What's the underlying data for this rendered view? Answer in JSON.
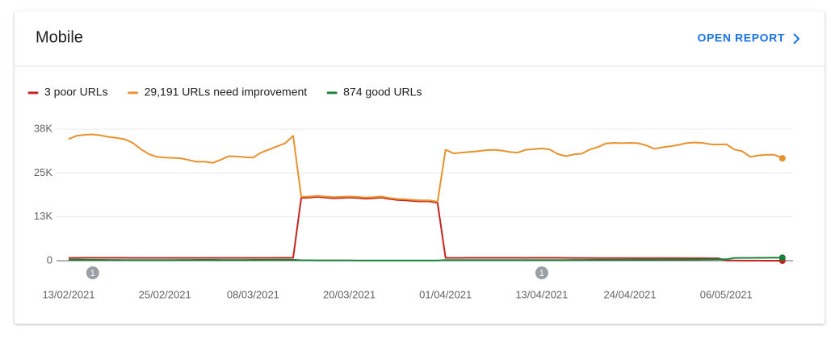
{
  "card": {
    "action": "OPEN REPORT"
  },
  "chart_data": {
    "type": "line",
    "title": "Mobile",
    "x": [
      "13/02/2021",
      "14/02/2021",
      "15/02/2021",
      "16/02/2021",
      "17/02/2021",
      "18/02/2021",
      "19/02/2021",
      "20/02/2021",
      "21/02/2021",
      "22/02/2021",
      "23/02/2021",
      "24/02/2021",
      "25/02/2021",
      "26/02/2021",
      "27/02/2021",
      "28/02/2021",
      "01/03/2021",
      "02/03/2021",
      "03/03/2021",
      "04/03/2021",
      "05/03/2021",
      "06/03/2021",
      "07/03/2021",
      "08/03/2021",
      "09/03/2021",
      "10/03/2021",
      "11/03/2021",
      "12/03/2021",
      "13/03/2021",
      "14/03/2021",
      "15/03/2021",
      "16/03/2021",
      "17/03/2021",
      "18/03/2021",
      "19/03/2021",
      "20/03/2021",
      "21/03/2021",
      "22/03/2021",
      "23/03/2021",
      "24/03/2021",
      "25/03/2021",
      "26/03/2021",
      "27/03/2021",
      "28/03/2021",
      "29/03/2021",
      "30/03/2021",
      "31/03/2021",
      "01/04/2021",
      "02/04/2021",
      "03/04/2021",
      "04/04/2021",
      "05/04/2021",
      "06/04/2021",
      "07/04/2021",
      "08/04/2021",
      "09/04/2021",
      "10/04/2021",
      "11/04/2021",
      "12/04/2021",
      "13/04/2021",
      "14/04/2021",
      "15/04/2021",
      "16/04/2021",
      "17/04/2021",
      "18/04/2021",
      "19/04/2021",
      "20/04/2021",
      "21/04/2021",
      "22/04/2021",
      "23/04/2021",
      "24/04/2021",
      "25/04/2021",
      "26/04/2021",
      "27/04/2021",
      "28/04/2021",
      "29/04/2021",
      "30/04/2021",
      "01/05/2021",
      "02/05/2021",
      "03/05/2021",
      "04/05/2021",
      "05/05/2021",
      "06/05/2021",
      "07/05/2021",
      "08/05/2021",
      "09/05/2021",
      "10/05/2021",
      "11/05/2021",
      "12/05/2021",
      "13/05/2021"
    ],
    "xticks": [
      "13/02/2021",
      "25/02/2021",
      "08/03/2021",
      "20/03/2021",
      "01/04/2021",
      "13/04/2021",
      "24/04/2021",
      "06/05/2021"
    ],
    "ylim": [
      0,
      37500
    ],
    "yticks": [
      0,
      {
        "value": 12500,
        "label": "13K"
      },
      {
        "value": 25000,
        "label": "25K"
      },
      {
        "value": 37500,
        "label": "38K"
      }
    ],
    "grid": true,
    "legend": "top-left",
    "annotations": [
      {
        "x": "16/02/2021",
        "label": "1"
      },
      {
        "x": "13/04/2021",
        "label": "1"
      }
    ],
    "series": [
      {
        "name": "3 poor URLs",
        "color": "#c5221f",
        "values": [
          800,
          810,
          820,
          820,
          830,
          830,
          820,
          820,
          810,
          810,
          800,
          800,
          810,
          810,
          810,
          800,
          800,
          800,
          800,
          810,
          810,
          800,
          800,
          800,
          810,
          810,
          820,
          820,
          830,
          17900,
          18000,
          18200,
          18000,
          17800,
          17900,
          18000,
          17900,
          17700,
          17800,
          18000,
          17600,
          17300,
          17200,
          17000,
          16900,
          16900,
          16500,
          800,
          800,
          810,
          820,
          820,
          830,
          830,
          830,
          820,
          820,
          810,
          820,
          830,
          830,
          820,
          810,
          790,
          780,
          780,
          770,
          770,
          760,
          760,
          760,
          750,
          750,
          740,
          740,
          730,
          730,
          720,
          720,
          710,
          700,
          690,
          60,
          40,
          30,
          20,
          15,
          10,
          5,
          3
        ]
      },
      {
        "name": "29,191 URLs need improvement",
        "color": "#e8912d",
        "values": [
          34700,
          35600,
          35900,
          36000,
          35700,
          35300,
          35000,
          34600,
          33600,
          31800,
          30400,
          29600,
          29400,
          29300,
          29200,
          28700,
          28200,
          28200,
          27900,
          28800,
          29800,
          29700,
          29500,
          29400,
          30800,
          31700,
          32600,
          33500,
          35600,
          18200,
          18300,
          18500,
          18300,
          18100,
          18200,
          18300,
          18200,
          18000,
          18100,
          18300,
          17900,
          17600,
          17500,
          17300,
          17200,
          17200,
          16800,
          31600,
          30600,
          30800,
          31000,
          31200,
          31500,
          31600,
          31400,
          31000,
          30800,
          31600,
          31800,
          32000,
          31700,
          30400,
          29800,
          30300,
          30500,
          31700,
          32400,
          33400,
          33600,
          33500,
          33600,
          33500,
          32900,
          31900,
          32300,
          32600,
          33000,
          33500,
          33700,
          33600,
          33200,
          33100,
          33200,
          31700,
          31200,
          29600,
          30000,
          30200,
          30200,
          29191
        ]
      },
      {
        "name": "874 good URLs",
        "color": "#188038",
        "values": [
          300,
          280,
          260,
          240,
          220,
          200,
          200,
          190,
          180,
          180,
          170,
          170,
          180,
          190,
          200,
          210,
          220,
          230,
          220,
          210,
          200,
          200,
          210,
          220,
          230,
          240,
          250,
          250,
          260,
          120,
          110,
          100,
          100,
          90,
          90,
          90,
          80,
          80,
          80,
          80,
          70,
          70,
          70,
          60,
          60,
          60,
          60,
          150,
          150,
          160,
          160,
          170,
          170,
          180,
          180,
          170,
          160,
          150,
          150,
          160,
          170,
          180,
          190,
          200,
          210,
          220,
          230,
          240,
          250,
          260,
          270,
          280,
          290,
          300,
          310,
          320,
          330,
          340,
          350,
          360,
          370,
          380,
          400,
          780,
          800,
          810,
          820,
          830,
          850,
          874
        ]
      }
    ]
  }
}
